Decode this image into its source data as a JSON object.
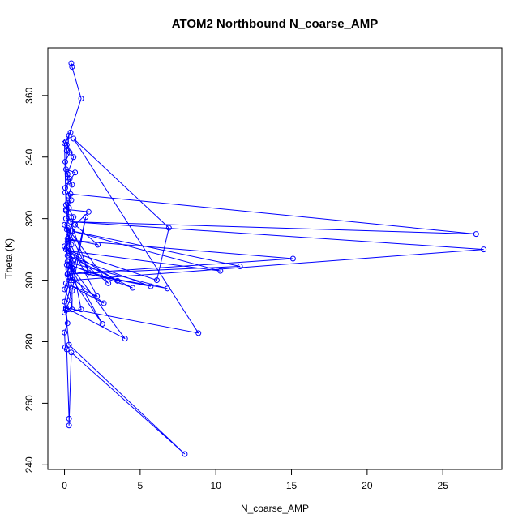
{
  "chart_data": {
    "type": "line",
    "title": "ATOM2 Northbound N_coarse_AMP",
    "xlabel": "N_coarse_AMP",
    "ylabel": "Theta (K)",
    "xlim": [
      -1.1,
      28.9
    ],
    "ylim": [
      238.5,
      375.5
    ],
    "xticks": [
      0,
      5,
      10,
      15,
      20,
      25
    ],
    "yticks": [
      240,
      260,
      280,
      300,
      320,
      340,
      360
    ],
    "grid": false,
    "legend": "none",
    "color": "#0000ff",
    "marker": "open-circle",
    "series": [
      {
        "points": [
          [
            0.45,
            370.5
          ],
          [
            0.5,
            369.3
          ],
          [
            1.1,
            359.0
          ],
          [
            0.3,
            347.0
          ],
          [
            0.15,
            342.0
          ],
          [
            0.1,
            336.0
          ],
          [
            0.7,
            335.0
          ],
          [
            0.05,
            330.0
          ],
          [
            0.2,
            325.0
          ],
          [
            0.1,
            322.5
          ],
          [
            0.3,
            320.5
          ],
          [
            0.0,
            318.0
          ],
          [
            0.4,
            316.0
          ],
          [
            0.2,
            312.5
          ],
          [
            0.0,
            311.0
          ],
          [
            0.3,
            309.0
          ],
          [
            0.5,
            307.5
          ],
          [
            0.15,
            305.0
          ],
          [
            0.25,
            301.0
          ],
          [
            0.1,
            299.0
          ],
          [
            0.0,
            297.0
          ],
          [
            0.35,
            293.5
          ],
          [
            0.1,
            290.5
          ],
          [
            0.2,
            286.0
          ],
          [
            0.0,
            283.0
          ],
          [
            0.05,
            278.2
          ],
          [
            0.15,
            277.5
          ],
          [
            0.3,
            255.0
          ],
          [
            0.3,
            252.8
          ],
          [
            0.45,
            276.5
          ],
          [
            7.95,
            243.5
          ],
          [
            0.3,
            279.0
          ],
          [
            0.0,
            293.0
          ],
          [
            0.5,
            304.0
          ],
          [
            0.1,
            320.0
          ],
          [
            0.4,
            328.0
          ],
          [
            27.2,
            315.0
          ],
          [
            0.4,
            319.0
          ],
          [
            27.7,
            310.0
          ],
          [
            0.55,
            300.0
          ],
          [
            0.3,
            313.0
          ],
          [
            15.1,
            307.0
          ],
          [
            0.2,
            302.0
          ],
          [
            11.6,
            304.5
          ],
          [
            0.5,
            316.0
          ],
          [
            10.3,
            303.0
          ],
          [
            0.3,
            309.5
          ],
          [
            6.1,
            300.0
          ],
          [
            6.9,
            317.0
          ],
          [
            0.6,
            346.0
          ],
          [
            8.85,
            282.8
          ],
          [
            0.1,
            291.0
          ],
          [
            4.0,
            281.0
          ],
          [
            0.2,
            306.0
          ],
          [
            2.5,
            285.8
          ],
          [
            0.4,
            301.0
          ],
          [
            2.6,
            292.5
          ],
          [
            0.3,
            298.5
          ],
          [
            2.15,
            294.8
          ],
          [
            0.2,
            313.5
          ],
          [
            2.2,
            311.5
          ],
          [
            0.7,
            318.0
          ],
          [
            1.6,
            322.2
          ],
          [
            0.1,
            323.0
          ],
          [
            1.6,
            302.5
          ],
          [
            0.2,
            317.0
          ],
          [
            2.9,
            299.0
          ],
          [
            0.1,
            310.0
          ],
          [
            3.5,
            299.8
          ],
          [
            0.3,
            305.0
          ],
          [
            4.5,
            297.5
          ],
          [
            0.2,
            308.0
          ],
          [
            5.7,
            298.0
          ],
          [
            0.4,
            303.0
          ],
          [
            6.8,
            297.3
          ],
          [
            0.5,
            305.5
          ],
          [
            1.1,
            290.5
          ],
          [
            0.0,
            289.5
          ],
          [
            1.4,
            320.5
          ],
          [
            0.5,
            296.5
          ],
          [
            0.5,
            290.5
          ],
          [
            0.2,
            301.8
          ],
          [
            0.0,
            344.5
          ],
          [
            0.4,
            348.0
          ],
          [
            0.1,
            345.0
          ],
          [
            0.6,
            340.0
          ],
          [
            0.2,
            334.5
          ],
          [
            0.35,
            333.0
          ],
          [
            0.5,
            331.0
          ],
          [
            0.25,
            327.5
          ],
          [
            0.45,
            326.0
          ],
          [
            0.1,
            324.5
          ],
          [
            0.6,
            320.5
          ],
          [
            0.35,
            314.8
          ],
          [
            0.15,
            310.5
          ],
          [
            0.55,
            306.5
          ],
          [
            0.25,
            303.5
          ],
          [
            0.45,
            311.5
          ],
          [
            0.15,
            316.5
          ],
          [
            0.3,
            323.5
          ],
          [
            0.05,
            328.5
          ],
          [
            0.25,
            332.0
          ],
          [
            0.05,
            338.5
          ],
          [
            0.35,
            341.5
          ],
          [
            0.15,
            344.0
          ]
        ]
      }
    ]
  }
}
